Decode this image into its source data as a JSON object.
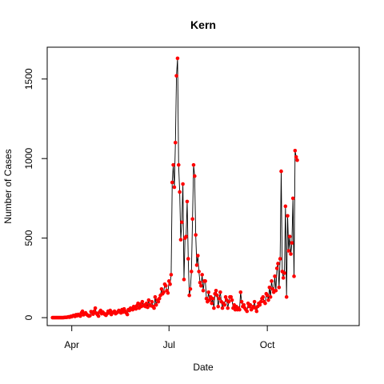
{
  "chart_data": {
    "type": "line",
    "title": "Kern",
    "xlabel": "Date",
    "ylabel": "Number of Cases",
    "x_ticks": [
      {
        "label": "Apr",
        "date": "2020-04-01"
      },
      {
        "label": "Jul",
        "date": "2020-07-01"
      },
      {
        "label": "Oct",
        "date": "2020-10-01"
      }
    ],
    "y_ticks": [
      0,
      500,
      1000,
      1500
    ],
    "xlim": [
      "2020-03-09",
      "2020-12-26"
    ],
    "ylim": [
      -50,
      1700
    ],
    "grid": false,
    "legend": "none",
    "colors": {
      "points": "#ff0000",
      "line": "#000000"
    },
    "series": [
      {
        "start_date": "2020-03-14",
        "values": [
          0,
          0,
          0,
          0,
          0,
          0,
          0,
          0,
          0,
          0,
          0,
          1,
          2,
          2,
          3,
          5,
          3,
          8,
          6,
          12,
          14,
          8,
          18,
          12,
          20,
          15,
          10,
          30,
          40,
          18,
          25,
          30,
          20,
          15,
          10,
          12,
          38,
          35,
          22,
          40,
          60,
          28,
          20,
          10,
          35,
          45,
          25,
          35,
          28,
          20,
          15,
          25,
          40,
          30,
          45,
          20,
          30,
          35,
          40,
          25,
          30,
          35,
          45,
          40,
          30,
          50,
          35,
          55,
          40,
          30,
          20,
          50,
          45,
          60,
          55,
          50,
          70,
          65,
          55,
          75,
          90,
          60,
          85,
          70,
          100,
          75,
          80,
          70,
          90,
          65,
          110,
          80,
          75,
          100,
          70,
          60,
          130,
          80,
          110,
          100,
          120,
          140,
          180,
          150,
          160,
          210,
          200,
          170,
          155,
          230,
          210,
          270,
          850,
          960,
          820,
          1100,
          1520,
          1630,
          960,
          790,
          490,
          600,
          840,
          240,
          500,
          510,
          730,
          370,
          140,
          180,
          290,
          620,
          960,
          890,
          520,
          330,
          390,
          290,
          220,
          200,
          270,
          170,
          230,
          230,
          120,
          100,
          160,
          110,
          130,
          90,
          120,
          60,
          150,
          170,
          140,
          70,
          120,
          160,
          100,
          60,
          90,
          80,
          130,
          110,
          60,
          100,
          130,
          130,
          110,
          60,
          80,
          50,
          70,
          50,
          60,
          50,
          160,
          100,
          70,
          80,
          60,
          50,
          40,
          90,
          70,
          80,
          50,
          60,
          70,
          100,
          60,
          40,
          70,
          90,
          80,
          100,
          120,
          130,
          100,
          90,
          150,
          140,
          110,
          190,
          130,
          230,
          180,
          160,
          260,
          170,
          310,
          340,
          190,
          370,
          920,
          290,
          250,
          280,
          700,
          130,
          640,
          420,
          510,
          400,
          470,
          750,
          260,
          1050,
          1010,
          990
        ]
      }
    ]
  }
}
